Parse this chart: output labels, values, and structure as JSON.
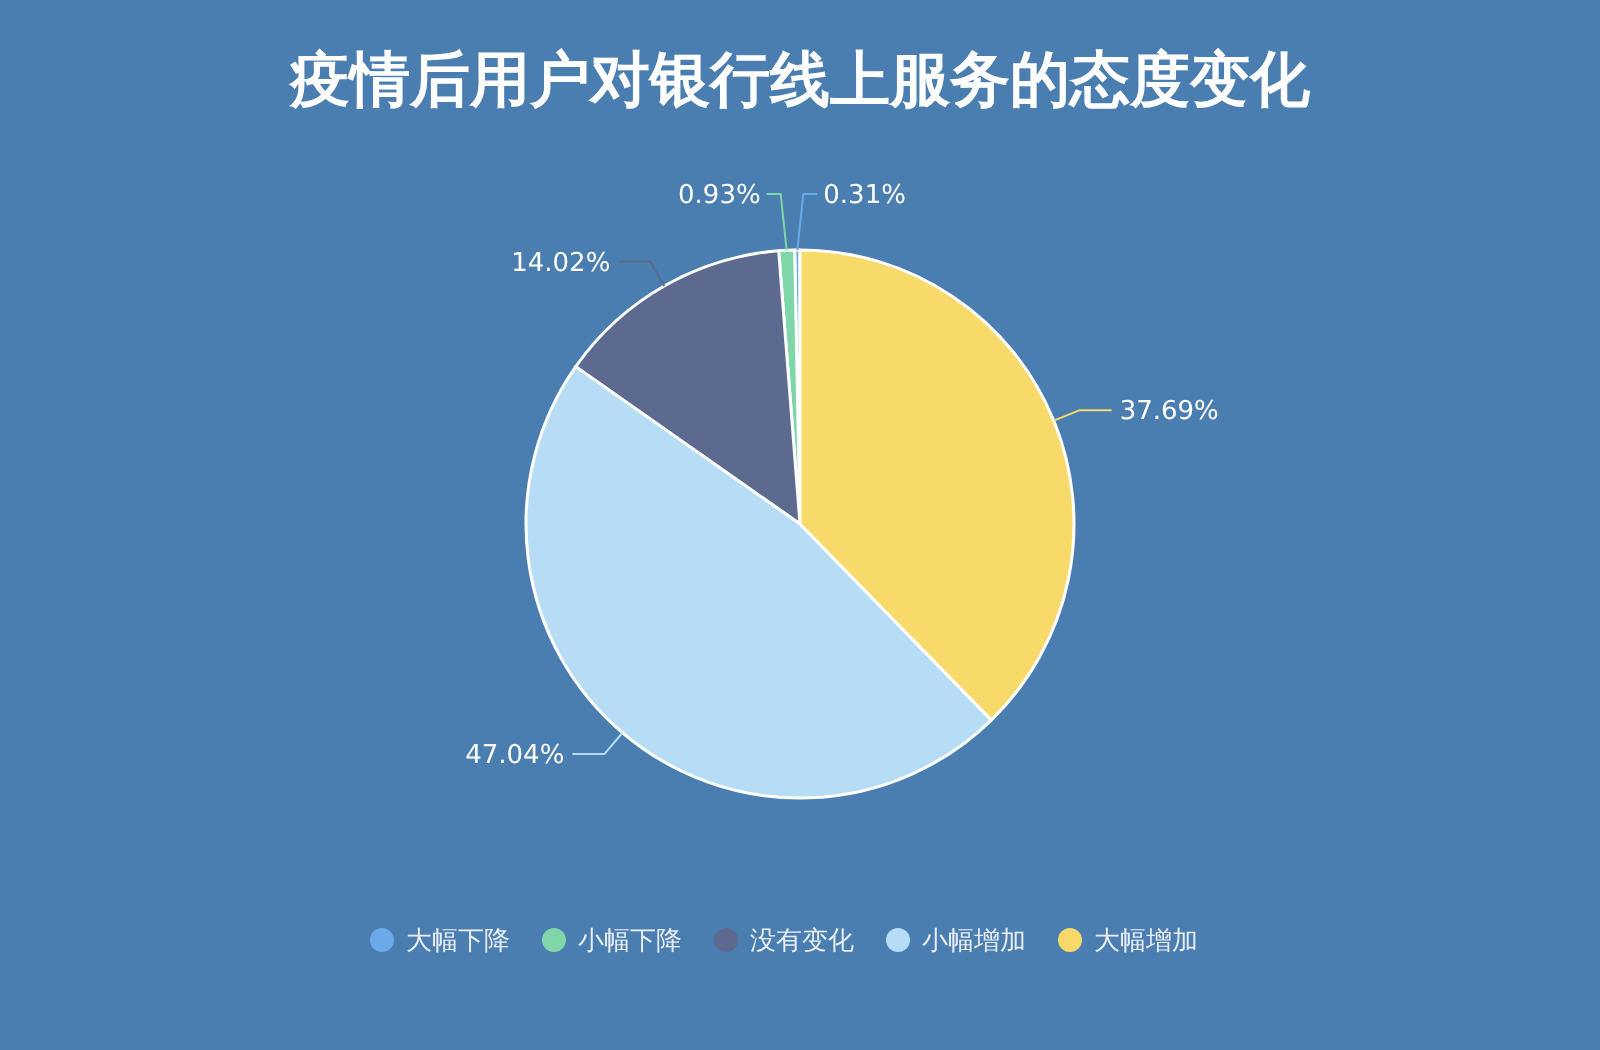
{
  "chart_data": {
    "type": "pie",
    "title": "疫情后用户对银行线上服务的态度变化",
    "categories": [
      "大幅下降",
      "小幅下降",
      "没有变化",
      "小幅增加",
      "大幅增加"
    ],
    "values": [
      0.31,
      0.93,
      14.02,
      47.04,
      37.69
    ],
    "value_labels": [
      "0.31%",
      "0.93%",
      "14.02%",
      "47.04%",
      "37.69%"
    ],
    "colors": [
      "#6aaae8",
      "#7fd6a8",
      "#5b6a8e",
      "#b6ddf5",
      "#f8da6a"
    ],
    "legend": "bottom"
  }
}
